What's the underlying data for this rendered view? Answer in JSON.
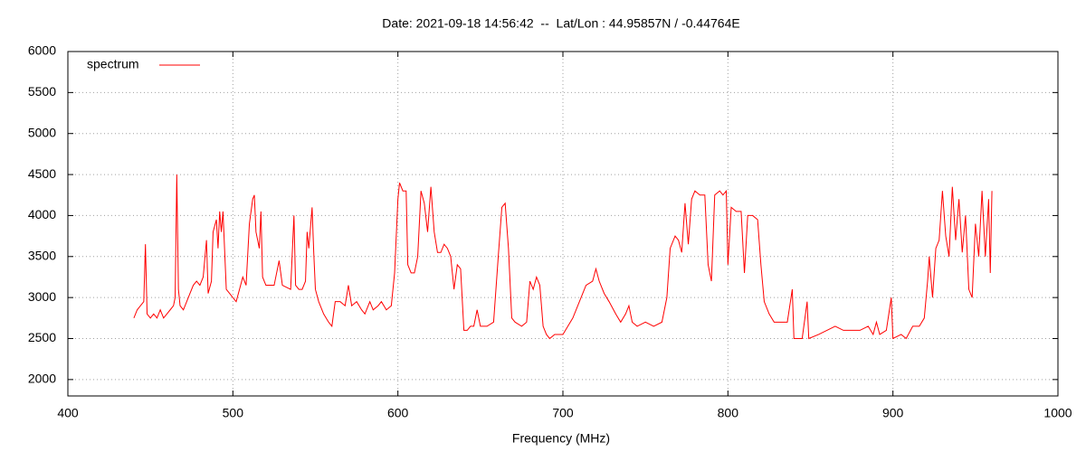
{
  "chart_data": {
    "type": "line",
    "title": "Date: 2021-09-18 14:56:42  --  Lat/Lon : 44.95857N / -0.44764E",
    "x_label": "Frequency (MHz)",
    "legend": "top-left",
    "grid": true,
    "xlim": [
      400,
      1000
    ],
    "xticks": [
      400,
      500,
      600,
      700,
      800,
      900,
      1000
    ],
    "ylim": [
      1800,
      6000
    ],
    "yticks": [
      2000,
      2500,
      3000,
      3500,
      4000,
      4500,
      5000,
      5500,
      6000
    ],
    "x": [
      440,
      442,
      444,
      446,
      447,
      448,
      450,
      452,
      454,
      456,
      458,
      460,
      462,
      464,
      465,
      466,
      467,
      468,
      470,
      472,
      474,
      476,
      478,
      480,
      482,
      484,
      485,
      487,
      488,
      490,
      491,
      492,
      493,
      494,
      496,
      498,
      500,
      502,
      504,
      506,
      508,
      510,
      512,
      513,
      514,
      516,
      517,
      518,
      520,
      525,
      528,
      530,
      535,
      537,
      538,
      540,
      542,
      544,
      545,
      546,
      548,
      549,
      550,
      552,
      555,
      558,
      560,
      562,
      565,
      568,
      570,
      572,
      575,
      578,
      580,
      583,
      585,
      588,
      590,
      593,
      596,
      598,
      600,
      601,
      603,
      605,
      606,
      608,
      610,
      612,
      614,
      616,
      618,
      620,
      622,
      624,
      626,
      628,
      630,
      632,
      634,
      636,
      638,
      640,
      642,
      644,
      646,
      648,
      650,
      654,
      658,
      661,
      663,
      665,
      667,
      669,
      671,
      675,
      678,
      680,
      682,
      684,
      686,
      688,
      690,
      692,
      695,
      698,
      700,
      703,
      706,
      710,
      714,
      718,
      720,
      722,
      725,
      728,
      732,
      735,
      738,
      740,
      742,
      745,
      750,
      755,
      760,
      763,
      765,
      768,
      770,
      772,
      774,
      776,
      778,
      780,
      783,
      786,
      788,
      790,
      792,
      795,
      797,
      799,
      800,
      802,
      805,
      808,
      810,
      812,
      815,
      818,
      820,
      822,
      825,
      828,
      832,
      836,
      839,
      840,
      845,
      848,
      849,
      855,
      860,
      865,
      870,
      875,
      880,
      885,
      888,
      890,
      892,
      896,
      899,
      900,
      905,
      908,
      912,
      916,
      919,
      921,
      922,
      924,
      926,
      928,
      930,
      932,
      934,
      936,
      938,
      940,
      942,
      944,
      946,
      948,
      950,
      952,
      954,
      956,
      958,
      959,
      960
    ],
    "series": [
      {
        "name": "spectrum",
        "color": "#ff0000",
        "values": [
          2750,
          2850,
          2900,
          2950,
          3650,
          2800,
          2750,
          2800,
          2750,
          2850,
          2750,
          2800,
          2850,
          2900,
          3000,
          4500,
          3100,
          2900,
          2850,
          2950,
          3050,
          3150,
          3200,
          3150,
          3250,
          3700,
          3050,
          3200,
          3800,
          3950,
          3600,
          4050,
          3800,
          4050,
          3100,
          3050,
          3000,
          2950,
          3100,
          3250,
          3150,
          3900,
          4200,
          4250,
          3800,
          3600,
          4050,
          3250,
          3150,
          3150,
          3450,
          3150,
          3100,
          4000,
          3150,
          3100,
          3100,
          3200,
          3800,
          3600,
          4100,
          3550,
          3100,
          2950,
          2800,
          2700,
          2650,
          2950,
          2950,
          2900,
          3150,
          2900,
          2950,
          2850,
          2800,
          2950,
          2850,
          2900,
          2950,
          2850,
          2900,
          3300,
          4200,
          4400,
          4300,
          4300,
          3400,
          3300,
          3300,
          3500,
          4300,
          4150,
          3800,
          4350,
          3800,
          3550,
          3550,
          3650,
          3600,
          3500,
          3100,
          3400,
          3350,
          2600,
          2600,
          2650,
          2650,
          2850,
          2650,
          2650,
          2700,
          3550,
          4100,
          4150,
          3600,
          2750,
          2700,
          2650,
          2700,
          3200,
          3100,
          3250,
          3150,
          2650,
          2550,
          2500,
          2550,
          2550,
          2550,
          2650,
          2750,
          2950,
          3150,
          3200,
          3350,
          3200,
          3050,
          2950,
          2800,
          2700,
          2800,
          2900,
          2700,
          2650,
          2700,
          2650,
          2700,
          3000,
          3600,
          3750,
          3700,
          3550,
          4150,
          3650,
          4200,
          4300,
          4250,
          4250,
          3400,
          3200,
          4250,
          4300,
          4250,
          4300,
          3400,
          4100,
          4050,
          4050,
          3300,
          4000,
          4000,
          3950,
          3400,
          2950,
          2800,
          2700,
          2700,
          2700,
          3100,
          2500,
          2500,
          2950,
          2500,
          2550,
          2600,
          2650,
          2600,
          2600,
          2600,
          2650,
          2550,
          2700,
          2550,
          2600,
          3000,
          2500,
          2550,
          2500,
          2650,
          2650,
          2750,
          3200,
          3500,
          3000,
          3600,
          3700,
          4300,
          3750,
          3500,
          4350,
          3700,
          4200,
          3550,
          4000,
          3100,
          3000,
          3900,
          3500,
          4300,
          3500,
          4200,
          3300,
          4300
        ]
      }
    ]
  }
}
